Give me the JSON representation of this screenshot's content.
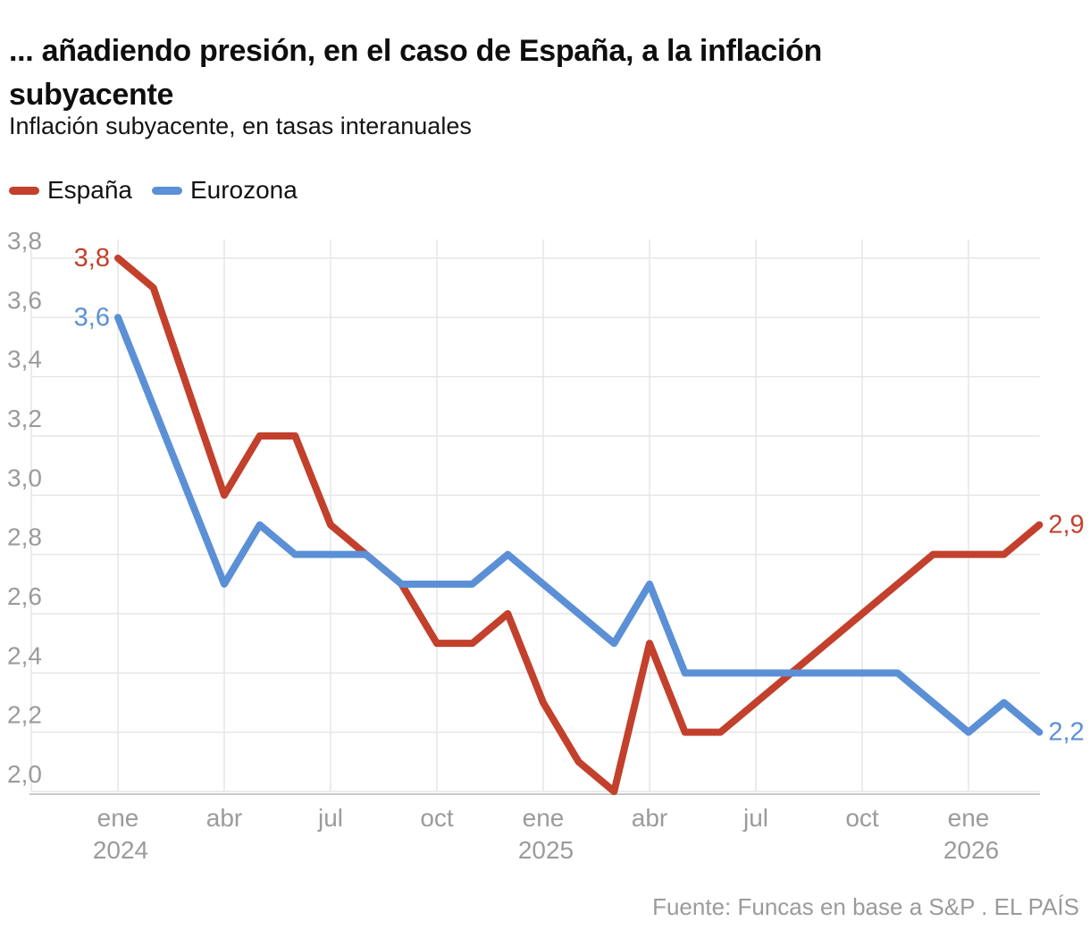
{
  "header": {
    "title_lines": [
      "... añadiendo presión, en el caso de España, a la inflación",
      "subyacente"
    ],
    "subtitle": "Inflación subyacente, en tasas interanuales"
  },
  "legend": [
    {
      "label": "España",
      "color": "#c2402c"
    },
    {
      "label": "Eurozona",
      "color": "#5b90d6"
    }
  ],
  "source": "Fuente: Funcas en base a S&P . EL PAÍS",
  "chart_data": {
    "type": "line",
    "title": "... añadiendo presión, en el caso de España, a la inflación subyacente",
    "subtitle": "Inflación subyacente, en tasas interanuales",
    "xlabel": "",
    "ylabel": "",
    "ylim": [
      2.0,
      3.8
    ],
    "grid": true,
    "legend_position": "top-left",
    "categories": [
      "ene 2024",
      "feb 2024",
      "mar 2024",
      "abr 2024",
      "may 2024",
      "jun 2024",
      "jul 2024",
      "ago 2024",
      "sep 2024",
      "oct 2024",
      "nov 2024",
      "dic 2024",
      "ene 2025",
      "feb 2025",
      "mar 2025",
      "abr 2025",
      "may 2025",
      "jun 2025",
      "jul 2025",
      "ago 2025",
      "sep 2025",
      "oct 2025",
      "nov 2025",
      "dic 2025",
      "ene 2026",
      "feb 2026",
      "mar 2026"
    ],
    "series": [
      {
        "name": "España",
        "color": "#c2402c",
        "first_label": "3,8",
        "last_label": "2,9",
        "values": [
          3.8,
          3.7,
          3.35,
          3.0,
          3.2,
          3.2,
          2.9,
          2.8,
          2.7,
          2.5,
          2.5,
          2.6,
          2.3,
          2.1,
          2.0,
          2.5,
          2.2,
          2.2,
          2.3,
          2.4,
          2.5,
          2.6,
          2.7,
          2.8,
          2.8,
          2.8,
          2.9
        ]
      },
      {
        "name": "Eurozona",
        "color": "#5b90d6",
        "first_label": "3,6",
        "last_label": "2,2",
        "values": [
          3.6,
          3.3,
          3.0,
          2.7,
          2.9,
          2.8,
          2.8,
          2.8,
          2.7,
          2.7,
          2.7,
          2.8,
          2.7,
          2.6,
          2.5,
          2.7,
          2.4,
          2.4,
          2.4,
          2.4,
          2.4,
          2.4,
          2.4,
          2.3,
          2.2,
          2.3,
          2.2
        ]
      }
    ],
    "y_ticks": [
      {
        "value": 3.8,
        "label": "3,8"
      },
      {
        "value": 3.6,
        "label": "3,6"
      },
      {
        "value": 3.4,
        "label": "3,4"
      },
      {
        "value": 3.2,
        "label": "3,2"
      },
      {
        "value": 3.0,
        "label": "3,0"
      },
      {
        "value": 2.8,
        "label": "2,8"
      },
      {
        "value": 2.6,
        "label": "2,6"
      },
      {
        "value": 2.4,
        "label": "2,4"
      },
      {
        "value": 2.2,
        "label": "2,2"
      },
      {
        "value": 2.0,
        "label": "2,0"
      }
    ],
    "x_ticks": [
      {
        "index": 0,
        "label": "ene",
        "year": "2024"
      },
      {
        "index": 3,
        "label": "abr"
      },
      {
        "index": 6,
        "label": "jul"
      },
      {
        "index": 9,
        "label": "oct"
      },
      {
        "index": 12,
        "label": "ene",
        "year": "2025"
      },
      {
        "index": 15,
        "label": "abr"
      },
      {
        "index": 18,
        "label": "jul"
      },
      {
        "index": 21,
        "label": "oct"
      },
      {
        "index": 24,
        "label": "ene",
        "year": "2026"
      }
    ],
    "colors": {
      "grid": "#e6e6e6",
      "axis": "#c9c9c9",
      "tick_text": "#9b9b9b"
    }
  }
}
